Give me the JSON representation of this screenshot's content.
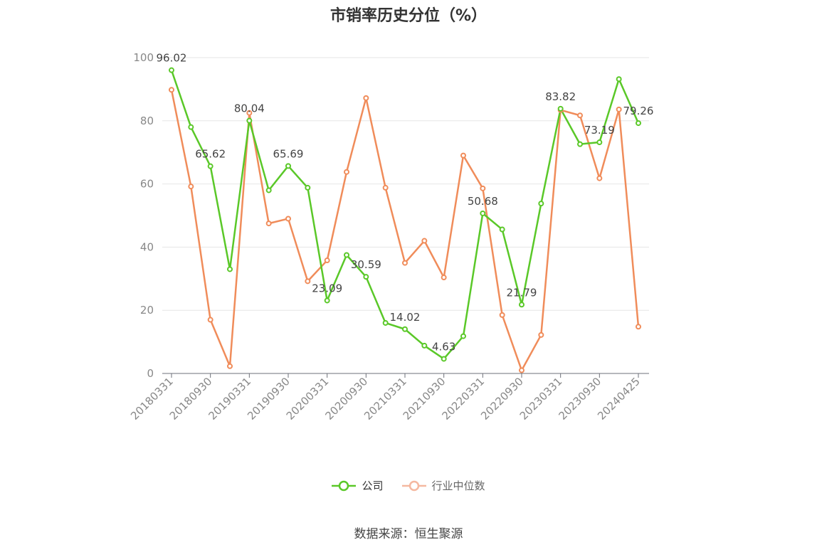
{
  "chart_data": {
    "type": "line",
    "title": "市销率历史分位（%）",
    "xlabel": "",
    "ylabel": "",
    "ylim": [
      0,
      100
    ],
    "yticks": [
      0,
      20,
      40,
      60,
      80,
      100
    ],
    "grid": true,
    "legend_position": "bottom",
    "x": [
      "20180331",
      "20180630",
      "20180930",
      "20181231",
      "20190331",
      "20190630",
      "20190930",
      "20191231",
      "20200331",
      "20200630",
      "20200930",
      "20201231",
      "20210331",
      "20210630",
      "20210930",
      "20211231",
      "20220331",
      "20220630",
      "20220930",
      "20221231",
      "20230331",
      "20230630",
      "20230930",
      "20231231",
      "20240425"
    ],
    "xtick_labels": [
      "20180331",
      "20180930",
      "20190331",
      "20190930",
      "20200331",
      "20200930",
      "20210331",
      "20210930",
      "20220331",
      "20220930",
      "20230331",
      "20230930",
      "20240425"
    ],
    "series": [
      {
        "name": "公司",
        "color": "#5ac828",
        "values": [
          96.02,
          78,
          65.62,
          33,
          80.04,
          58,
          65.69,
          58.8,
          23.09,
          37.5,
          30.59,
          16,
          14.02,
          8.8,
          4.63,
          11.8,
          50.68,
          45.6,
          21.79,
          53.8,
          83.82,
          72.6,
          73.19,
          93.2,
          79.26
        ],
        "data_labels": [
          {
            "index": 0,
            "text": "96.02"
          },
          {
            "index": 2,
            "text": "65.62"
          },
          {
            "index": 4,
            "text": "80.04"
          },
          {
            "index": 6,
            "text": "65.69"
          },
          {
            "index": 8,
            "text": "23.09"
          },
          {
            "index": 10,
            "text": "30.59"
          },
          {
            "index": 12,
            "text": "14.02"
          },
          {
            "index": 14,
            "text": "4.63"
          },
          {
            "index": 16,
            "text": "50.68"
          },
          {
            "index": 18,
            "text": "21.79"
          },
          {
            "index": 20,
            "text": "83.82"
          },
          {
            "index": 22,
            "text": "73.19"
          },
          {
            "index": 24,
            "text": "79.26"
          }
        ]
      },
      {
        "name": "行业中位数",
        "color": "#f08c5a",
        "values": [
          89.8,
          59.2,
          17,
          2.3,
          82.5,
          47.5,
          49,
          29.2,
          35.8,
          63.8,
          87.2,
          58.8,
          35,
          42,
          30.4,
          69,
          58.6,
          18.5,
          1,
          12.2,
          83.4,
          81.7,
          61.8,
          83.6,
          14.8
        ]
      }
    ]
  },
  "legend": [
    {
      "label": "公司",
      "color": "#5ac828",
      "active": true
    },
    {
      "label": "行业中位数",
      "color": "#f5b8a0",
      "active": false
    }
  ],
  "source": "数据来源：恒生聚源"
}
